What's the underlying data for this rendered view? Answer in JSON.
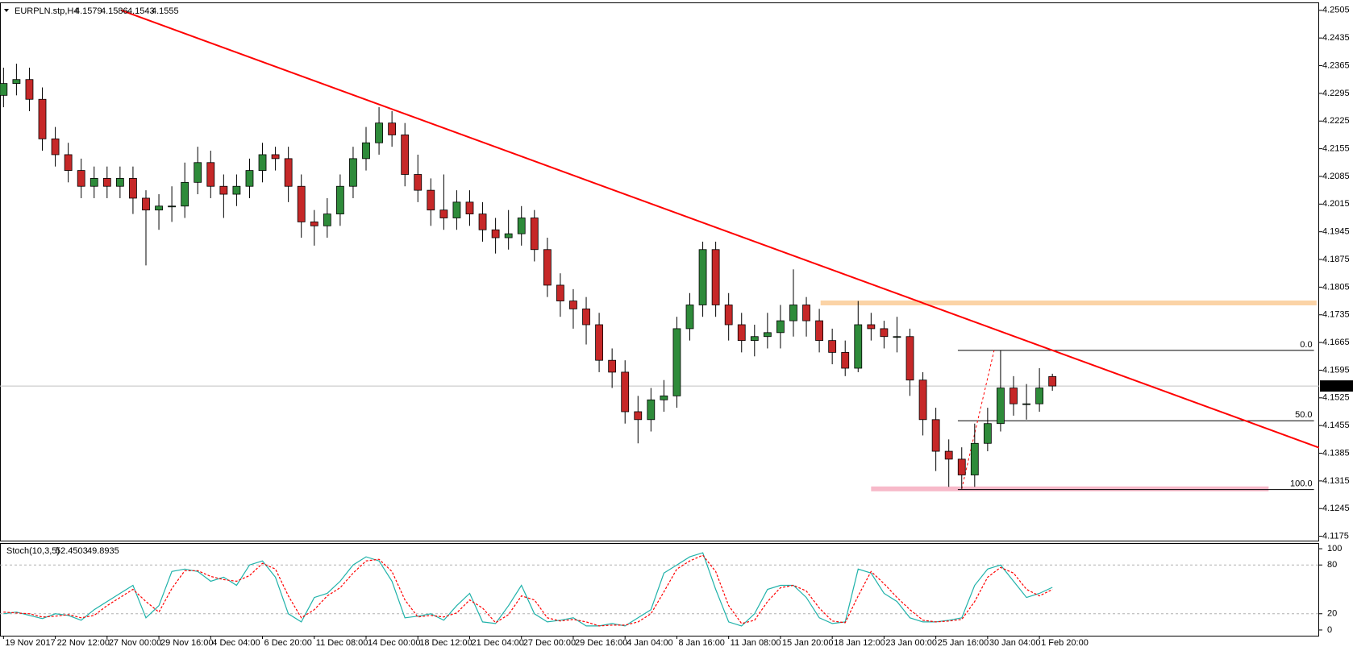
{
  "chart_data": [
    {
      "type": "candlestick",
      "symbol": "EURPLN.stp,H4",
      "xlim": [
        -0.27,
        101.6
      ],
      "ylim": [
        4.1164,
        4.2525
      ],
      "yticks": [
        4.1175,
        4.1245,
        4.1315,
        4.1385,
        4.1455,
        4.1525,
        4.1595,
        4.1665,
        4.1735,
        4.1805,
        4.1875,
        4.1945,
        4.2015,
        4.2085,
        4.2155,
        4.2225,
        4.2295,
        4.2365,
        4.2435,
        4.2505
      ],
      "xticks": [
        {
          "value": 0,
          "label": "19 Nov 2017"
        },
        {
          "value": 4,
          "label": "22 Nov 12:00"
        },
        {
          "value": 8,
          "label": "27 Nov 00:00"
        },
        {
          "value": 12,
          "label": "29 Nov 16:00"
        },
        {
          "value": 16,
          "label": "4 Dec 04:00"
        },
        {
          "value": 20,
          "label": "6 Dec 20:00"
        },
        {
          "value": 24,
          "label": "11 Dec 08:00"
        },
        {
          "value": 28,
          "label": "14 Dec 00:00"
        },
        {
          "value": 32,
          "label": "18 Dec 12:00"
        },
        {
          "value": 36,
          "label": "21 Dec 04:00"
        },
        {
          "value": 40,
          "label": "27 Dec 00:00"
        },
        {
          "value": 44,
          "label": "29 Dec 16:00"
        },
        {
          "value": 48,
          "label": "4 Jan 04:00"
        },
        {
          "value": 52,
          "label": "8 Jan 16:00"
        },
        {
          "value": 56,
          "label": "11 Jan 08:00"
        },
        {
          "value": 60,
          "label": "15 Jan 20:00"
        },
        {
          "value": 64,
          "label": "18 Jan 12:00"
        },
        {
          "value": 68,
          "label": "23 Jan 00:00"
        },
        {
          "value": 72,
          "label": "25 Jan 16:00"
        },
        {
          "value": 76,
          "label": "30 Jan 04:00"
        },
        {
          "value": 80,
          "label": "1 Feb 20:00"
        }
      ],
      "open": [
        4.229,
        4.232,
        4.233,
        4.228,
        4.218,
        4.214,
        4.21,
        4.206,
        4.208,
        4.206,
        4.208,
        4.203,
        4.2,
        4.201,
        4.201,
        4.207,
        4.212,
        4.206,
        4.204,
        4.206,
        4.21,
        4.214,
        4.213,
        4.206,
        4.197,
        4.196,
        4.199,
        4.206,
        4.213,
        4.217,
        4.222,
        4.219,
        4.209,
        4.205,
        4.2,
        4.198,
        4.202,
        4.199,
        4.195,
        4.193,
        4.194,
        4.198,
        4.19,
        4.181,
        4.177,
        4.175,
        4.171,
        4.162,
        4.159,
        4.149,
        4.147,
        4.152,
        4.153,
        4.17,
        4.176,
        4.19,
        4.176,
        4.171,
        4.167,
        4.168,
        4.169,
        4.172,
        4.176,
        4.172,
        4.167,
        4.164,
        4.16,
        4.171,
        4.17,
        4.168,
        4.168,
        4.157,
        4.147,
        4.139,
        4.137,
        4.133,
        4.141,
        4.146,
        4.155,
        4.151,
        4.151,
        4.1579
      ],
      "high": [
        4.236,
        4.237,
        4.236,
        4.231,
        4.221,
        4.217,
        4.213,
        4.211,
        4.211,
        4.211,
        4.211,
        4.205,
        4.204,
        4.206,
        4.212,
        4.216,
        4.215,
        4.209,
        4.209,
        4.213,
        4.217,
        4.216,
        4.216,
        4.209,
        4.2,
        4.203,
        4.209,
        4.216,
        4.221,
        4.226,
        4.225,
        4.222,
        4.214,
        4.208,
        4.209,
        4.205,
        4.205,
        4.202,
        4.198,
        4.2,
        4.201,
        4.2,
        4.193,
        4.184,
        4.18,
        4.178,
        4.174,
        4.165,
        4.162,
        4.153,
        4.155,
        4.157,
        4.173,
        4.179,
        4.192,
        4.192,
        4.179,
        4.174,
        4.171,
        4.174,
        4.176,
        4.185,
        4.178,
        4.175,
        4.17,
        4.167,
        4.177,
        4.174,
        4.172,
        4.173,
        4.17,
        4.159,
        4.15,
        4.142,
        4.14,
        4.146,
        4.15,
        4.1645,
        4.158,
        4.156,
        4.16,
        4.1586
      ],
      "low": [
        4.226,
        4.229,
        4.225,
        4.215,
        4.211,
        4.207,
        4.203,
        4.203,
        4.203,
        4.203,
        4.199,
        4.186,
        4.195,
        4.197,
        4.198,
        4.204,
        4.203,
        4.198,
        4.201,
        4.203,
        4.207,
        4.21,
        4.202,
        4.193,
        4.191,
        4.193,
        4.196,
        4.203,
        4.21,
        4.214,
        4.216,
        4.206,
        4.202,
        4.196,
        4.195,
        4.195,
        4.196,
        4.192,
        4.189,
        4.19,
        4.191,
        4.187,
        4.178,
        4.173,
        4.17,
        4.166,
        4.159,
        4.155,
        4.146,
        4.141,
        4.144,
        4.149,
        4.15,
        4.167,
        4.173,
        4.173,
        4.167,
        4.164,
        4.163,
        4.165,
        4.165,
        4.168,
        4.168,
        4.164,
        4.161,
        4.158,
        4.159,
        4.167,
        4.165,
        4.164,
        4.153,
        4.143,
        4.134,
        4.13,
        4.1295,
        4.13,
        4.139,
        4.144,
        4.148,
        4.147,
        4.149,
        4.1543
      ],
      "close": [
        4.232,
        4.233,
        4.228,
        4.218,
        4.214,
        4.21,
        4.206,
        4.208,
        4.206,
        4.208,
        4.203,
        4.2,
        4.201,
        4.201,
        4.207,
        4.212,
        4.206,
        4.204,
        4.206,
        4.21,
        4.214,
        4.213,
        4.206,
        4.197,
        4.196,
        4.199,
        4.206,
        4.213,
        4.217,
        4.222,
        4.219,
        4.209,
        4.205,
        4.2,
        4.198,
        4.202,
        4.199,
        4.195,
        4.193,
        4.194,
        4.198,
        4.19,
        4.181,
        4.177,
        4.175,
        4.171,
        4.162,
        4.159,
        4.149,
        4.147,
        4.152,
        4.153,
        4.17,
        4.176,
        4.19,
        4.176,
        4.171,
        4.167,
        4.168,
        4.169,
        4.172,
        4.176,
        4.172,
        4.167,
        4.164,
        4.16,
        4.171,
        4.17,
        4.168,
        4.168,
        4.157,
        4.147,
        4.139,
        4.137,
        4.133,
        4.141,
        4.146,
        4.155,
        4.151,
        4.151,
        4.155,
        4.1555
      ],
      "bull_color": "#2e8b3a",
      "bear_color": "#c62828",
      "current_price": 4.1555,
      "trendline": {
        "x": [
          9.1,
          101.6
        ],
        "y": [
          4.2505,
          4.1399
        ],
        "color": "#ff0000"
      },
      "zones": [
        {
          "x": [
            63.1,
            101.4
          ],
          "y": 4.1765,
          "color": "#fbd3a6"
        },
        {
          "x": [
            67.0,
            97.7
          ],
          "y": 4.1295,
          "color": "#f7b9c9"
        }
      ],
      "fib": {
        "x": [
          73.7,
          101.2
        ],
        "levels": [
          {
            "value": 0,
            "label": "0.0"
          },
          {
            "value": 50,
            "label": "50.0"
          },
          {
            "value": 100,
            "label": "100.0"
          }
        ],
        "prices": [
          4.1645,
          4.1467,
          4.1293
        ],
        "swing_x": [
          74,
          76.5
        ],
        "swing_y": [
          4.1295,
          4.1645
        ],
        "color": "#ff0000"
      }
    },
    {
      "type": "line",
      "title": "Stoch(10,3,5)",
      "ylim": [
        -7,
        107
      ],
      "yticks": [
        0,
        20,
        80,
        100
      ],
      "grid": [
        20,
        80
      ],
      "series": [
        {
          "color": "#20b2aa",
          "dashed": false,
          "values": [
            20,
            22,
            18,
            14,
            20,
            18,
            12,
            25,
            35,
            45,
            55,
            15,
            30,
            72,
            75,
            72,
            60,
            65,
            55,
            80,
            85,
            65,
            20,
            10,
            40,
            45,
            60,
            80,
            90,
            85,
            60,
            15,
            17,
            20,
            12,
            30,
            45,
            10,
            8,
            30,
            55,
            20,
            10,
            12,
            15,
            5,
            5,
            8,
            5,
            15,
            25,
            70,
            80,
            90,
            95,
            50,
            10,
            5,
            20,
            50,
            55,
            55,
            40,
            15,
            8,
            10,
            75,
            70,
            45,
            35,
            15,
            10,
            10,
            12,
            15,
            55,
            75,
            80,
            60,
            40,
            45,
            52.4503
          ]
        },
        {
          "color": "#ff0000",
          "dashed": true,
          "values": [
            22,
            21,
            20,
            16,
            17,
            19,
            15,
            18,
            30,
            40,
            50,
            35,
            22,
            51,
            73,
            73,
            66,
            62,
            60,
            67,
            82,
            75,
            42,
            15,
            25,
            42,
            52,
            70,
            85,
            87,
            72,
            37,
            16,
            18,
            16,
            21,
            37,
            27,
            9,
            19,
            42,
            37,
            15,
            11,
            13,
            10,
            5,
            6,
            6,
            10,
            20,
            47,
            75,
            85,
            92,
            72,
            30,
            8,
            12,
            35,
            52,
            55,
            48,
            27,
            11,
            9,
            42,
            72,
            57,
            40,
            25,
            12,
            10,
            11,
            13,
            35,
            65,
            77,
            70,
            50,
            42,
            49.8935
          ]
        }
      ]
    }
  ]
}
